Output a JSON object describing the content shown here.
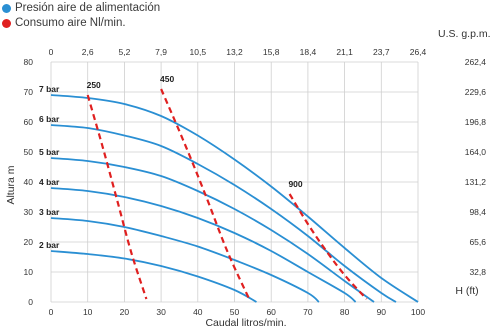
{
  "legend": {
    "items": [
      {
        "label": "Presión aire de alimentación",
        "color": "#2a8fd3"
      },
      {
        "label": "Consumo aire Nl/min.",
        "color": "#e02020"
      }
    ]
  },
  "chart_data": {
    "type": "line",
    "xlabel": "Caudal litros/min.",
    "ylabel": "Altura m",
    "top_xlabel": "U.S. g.p.m.",
    "right_ylabel": "H (ft)",
    "xlim": [
      0,
      100
    ],
    "ylim": [
      0,
      80
    ],
    "x_ticks": [
      0,
      10,
      20,
      30,
      40,
      50,
      60,
      70,
      80,
      90,
      100
    ],
    "y_ticks": [
      0,
      10,
      20,
      30,
      40,
      50,
      60,
      70,
      80
    ],
    "top_x_ticks": [
      "0",
      "2,6",
      "5,2",
      "7,9",
      "10,5",
      "13,2",
      "15,8",
      "18,4",
      "21,1",
      "23,7",
      "26,4"
    ],
    "right_y_ticks": [
      "",
      "32,8",
      "65,6",
      "98,4",
      "131,2",
      "164,0",
      "196,8",
      "229,6",
      "262,4"
    ],
    "grid": true,
    "series": [
      {
        "name": "2 bar",
        "color": "#2a8fd3",
        "x": [
          0,
          10,
          20,
          30,
          40,
          50,
          56
        ],
        "y": [
          17,
          16,
          14.5,
          12,
          8.5,
          4,
          0
        ]
      },
      {
        "name": "3 bar",
        "color": "#2a8fd3",
        "x": [
          0,
          10,
          20,
          30,
          40,
          50,
          60,
          70,
          73
        ],
        "y": [
          28,
          27,
          25,
          22,
          18.5,
          14,
          9,
          3,
          0
        ]
      },
      {
        "name": "4 bar",
        "color": "#2a8fd3",
        "x": [
          0,
          10,
          20,
          30,
          40,
          50,
          60,
          70,
          80,
          83
        ],
        "y": [
          38,
          37,
          35,
          32,
          28,
          23,
          17,
          10,
          3,
          0
        ]
      },
      {
        "name": "5 bar",
        "color": "#2a8fd3",
        "x": [
          0,
          10,
          20,
          30,
          40,
          50,
          60,
          70,
          80,
          88
        ],
        "y": [
          48,
          47,
          45,
          42,
          37,
          31,
          24,
          16,
          7,
          0
        ]
      },
      {
        "name": "6 bar",
        "color": "#2a8fd3",
        "x": [
          0,
          10,
          20,
          30,
          40,
          50,
          60,
          70,
          80,
          90,
          94
        ],
        "y": [
          59,
          58,
          55.5,
          52,
          46,
          39,
          31,
          22,
          12,
          3,
          0
        ]
      },
      {
        "name": "7 bar",
        "color": "#2a8fd3",
        "x": [
          0,
          10,
          20,
          30,
          40,
          50,
          60,
          70,
          80,
          90,
          100
        ],
        "y": [
          69,
          68,
          66,
          62,
          55.5,
          47.5,
          38.5,
          28.5,
          18,
          8,
          0
        ]
      }
    ],
    "air_consumption": [
      {
        "name": "250",
        "color": "#e02020",
        "x": [
          10,
          14,
          18,
          22,
          26
        ],
        "y": [
          69,
          52,
          34,
          16,
          1
        ]
      },
      {
        "name": "450",
        "color": "#e02020",
        "x": [
          30,
          36,
          42,
          48,
          54
        ],
        "y": [
          71,
          54,
          36,
          17,
          1
        ]
      },
      {
        "name": "900",
        "color": "#e02020",
        "x": [
          65,
          70,
          75,
          80,
          86
        ],
        "y": [
          36,
          26,
          17,
          9,
          1
        ]
      }
    ]
  }
}
